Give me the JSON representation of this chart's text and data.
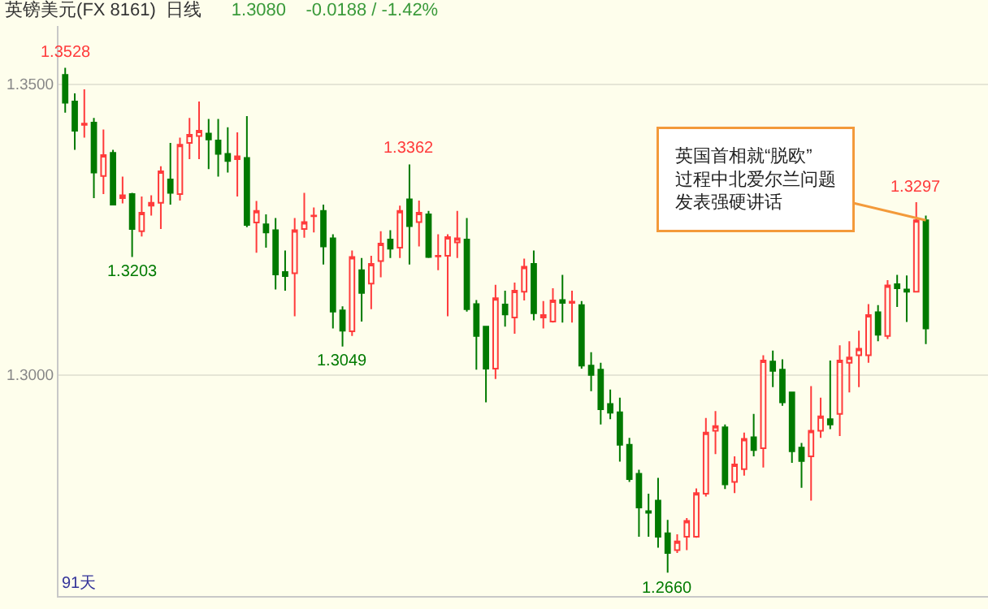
{
  "chart_data": {
    "type": "candlestick",
    "title": "英镑美元(FX 8161)  日线",
    "subtitle": "1.3080    -0.0188 / -1.42%",
    "categories": [
      null,
      null,
      null,
      null,
      null,
      null,
      null,
      null,
      null,
      null,
      null,
      null,
      null,
      null,
      null,
      null,
      null,
      null,
      null,
      null,
      null,
      null,
      null,
      null,
      null,
      null,
      null,
      null,
      null,
      null,
      null,
      null,
      null,
      null,
      null,
      null,
      null,
      null,
      null,
      null,
      null,
      null,
      null,
      null,
      null,
      null,
      null,
      null,
      null,
      null,
      null,
      null,
      null,
      null,
      null,
      null,
      null,
      null,
      null,
      null,
      null,
      null,
      null,
      null,
      null,
      null,
      null,
      null,
      null,
      null,
      null,
      null,
      null,
      null,
      null,
      null,
      null,
      null,
      null,
      null,
      null,
      null,
      null,
      null,
      null,
      null,
      null,
      null,
      null,
      null,
      null
    ],
    "ohlc": [
      [
        1.3516,
        1.3528,
        1.3451,
        1.3468
      ],
      [
        1.347,
        1.3484,
        1.3387,
        1.342
      ],
      [
        1.343,
        1.3491,
        1.3408,
        1.3432
      ],
      [
        1.3434,
        1.3442,
        1.3304,
        1.3348
      ],
      [
        1.3342,
        1.3422,
        1.3311,
        1.3378
      ],
      [
        1.3382,
        1.3387,
        1.3293,
        1.3293
      ],
      [
        1.3304,
        1.3341,
        1.3295,
        1.3309
      ],
      [
        1.3311,
        1.3313,
        1.3203,
        1.3251
      ],
      [
        1.3247,
        1.3307,
        1.3238,
        1.3279
      ],
      [
        1.3291,
        1.3309,
        1.3274,
        1.3296
      ],
      [
        1.3296,
        1.3359,
        1.3251,
        1.335
      ],
      [
        1.3336,
        1.3399,
        1.3293,
        1.3313
      ],
      [
        1.3311,
        1.3408,
        1.33,
        1.3396
      ],
      [
        1.3399,
        1.3442,
        1.3371,
        1.3413
      ],
      [
        1.3411,
        1.347,
        1.3371,
        1.342
      ],
      [
        1.3415,
        1.344,
        1.3354,
        1.3405
      ],
      [
        1.3403,
        1.344,
        1.3341,
        1.338
      ],
      [
        1.338,
        1.3426,
        1.3348,
        1.3368
      ],
      [
        1.3371,
        1.3417,
        1.3307,
        1.3376
      ],
      [
        1.3373,
        1.3445,
        1.3254,
        1.3258
      ],
      [
        1.3262,
        1.3299,
        1.321,
        1.3282
      ],
      [
        1.3259,
        1.3276,
        1.3219,
        1.3245
      ],
      [
        1.3249,
        1.327,
        1.3147,
        1.3173
      ],
      [
        1.3177,
        1.3214,
        1.3145,
        1.317
      ],
      [
        1.3175,
        1.327,
        1.3101,
        1.3249
      ],
      [
        1.3251,
        1.3313,
        1.3236,
        1.3263
      ],
      [
        1.3273,
        1.3288,
        1.3245,
        1.3274
      ],
      [
        1.3282,
        1.3293,
        1.319,
        1.3221
      ],
      [
        1.3235,
        1.3242,
        1.308,
        1.3109
      ],
      [
        1.3111,
        1.3118,
        1.3049,
        1.3076
      ],
      [
        1.3075,
        1.3214,
        1.3067,
        1.3203
      ],
      [
        1.318,
        1.3201,
        1.3092,
        1.3141
      ],
      [
        1.3157,
        1.3205,
        1.3113,
        1.3191
      ],
      [
        1.3196,
        1.3247,
        1.3168,
        1.3226
      ],
      [
        1.3233,
        1.3249,
        1.3201,
        1.3217
      ],
      [
        1.3219,
        1.3291,
        1.3201,
        1.3282
      ],
      [
        1.3302,
        1.3362,
        1.319,
        1.3256
      ],
      [
        1.3263,
        1.33,
        1.3221,
        1.3279
      ],
      [
        1.3276,
        1.3282,
        1.3201,
        1.3203
      ],
      [
        1.3204,
        1.3242,
        1.318,
        1.3205
      ],
      [
        1.3205,
        1.3242,
        1.3101,
        1.3237
      ],
      [
        1.3228,
        1.3282,
        1.3201,
        1.3235
      ],
      [
        1.3233,
        1.327,
        1.3109,
        1.3113
      ],
      [
        1.3122,
        1.3129,
        1.3009,
        1.3067
      ],
      [
        1.3083,
        1.3083,
        1.2953,
        1.3011
      ],
      [
        1.3011,
        1.3155,
        1.2993,
        1.3132
      ],
      [
        1.3121,
        1.3145,
        1.3083,
        1.3104
      ],
      [
        1.3099,
        1.3159,
        1.3071,
        1.3145
      ],
      [
        1.3143,
        1.32,
        1.3128,
        1.3186
      ],
      [
        1.3191,
        1.3214,
        1.3094,
        1.3106
      ],
      [
        1.3099,
        1.3127,
        1.308,
        1.3103
      ],
      [
        1.3092,
        1.3149,
        1.309,
        1.3128
      ],
      [
        1.3129,
        1.3172,
        1.309,
        1.3124
      ],
      [
        1.3124,
        1.3145,
        1.309,
        1.3126
      ],
      [
        1.312,
        1.3127,
        1.3011,
        1.3016
      ],
      [
        1.3016,
        1.3039,
        1.2972,
        1.3
      ],
      [
        1.3009,
        1.3021,
        1.2915,
        1.2941
      ],
      [
        1.295,
        1.2975,
        1.2924,
        1.2935
      ],
      [
        1.2936,
        1.2961,
        1.2851,
        1.288
      ],
      [
        1.288,
        1.2892,
        1.2816,
        1.2821
      ],
      [
        1.283,
        1.2837,
        1.2722,
        1.2772
      ],
      [
        1.2766,
        1.2796,
        1.2722,
        1.2763
      ],
      [
        1.2784,
        1.2823,
        1.2703,
        1.2722
      ],
      [
        1.2728,
        1.2751,
        1.266,
        1.2694
      ],
      [
        1.2699,
        1.2726,
        1.2694,
        1.2714
      ],
      [
        1.2722,
        1.2754,
        1.2699,
        1.2749
      ],
      [
        1.2722,
        1.2805,
        1.272,
        1.2797
      ],
      [
        1.2796,
        1.2926,
        1.2791,
        1.2901
      ],
      [
        1.2904,
        1.2938,
        1.2864,
        1.2912
      ],
      [
        1.291,
        1.2915,
        1.2804,
        1.2812
      ],
      [
        1.2816,
        1.286,
        1.2797,
        1.2846
      ],
      [
        1.2838,
        1.2901,
        1.2827,
        1.289
      ],
      [
        1.2893,
        1.2933,
        1.286,
        1.2871
      ],
      [
        1.2874,
        1.3034,
        1.2841,
        1.3025
      ],
      [
        1.3023,
        1.3042,
        1.2979,
        1.3007
      ],
      [
        1.3009,
        1.3027,
        1.2947,
        1.2953
      ],
      [
        1.297,
        1.297,
        1.2849,
        1.2869
      ],
      [
        1.2875,
        1.2883,
        1.2806,
        1.2852
      ],
      [
        1.286,
        1.2981,
        1.2784,
        1.2904
      ],
      [
        1.2904,
        1.2961,
        1.2892,
        1.2929
      ],
      [
        1.2924,
        1.3025,
        1.2907,
        1.2915
      ],
      [
        1.2933,
        1.3051,
        1.2895,
        1.3025
      ],
      [
        1.3021,
        1.3058,
        1.297,
        1.303
      ],
      [
        1.3034,
        1.3076,
        1.2979,
        1.3045
      ],
      [
        1.3034,
        1.3122,
        1.3021,
        1.3103
      ],
      [
        1.3108,
        1.312,
        1.3058,
        1.3069
      ],
      [
        1.3067,
        1.3163,
        1.3062,
        1.3154
      ],
      [
        1.3156,
        1.3172,
        1.3117,
        1.3149
      ],
      [
        1.3147,
        1.3171,
        1.3091,
        1.3143
      ],
      [
        1.3143,
        1.3297,
        1.3142,
        1.3266
      ],
      [
        1.3266,
        1.3274,
        1.3053,
        1.308
      ]
    ],
    "colors": [
      "#007a00",
      "#007a00",
      "#ff3b3b",
      "#007a00",
      "#ff3b3b",
      "#007a00",
      "#ff3b3b",
      "#007a00",
      "#ff3b3b",
      "#ff3b3b",
      "#ff3b3b",
      "#007a00",
      "#ff3b3b",
      "#ff3b3b",
      "#ff3b3b",
      "#007a00",
      "#007a00",
      "#007a00",
      "#ff3b3b",
      "#007a00",
      "#ff3b3b",
      "#007a00",
      "#007a00",
      "#007a00",
      "#ff3b3b",
      "#ff3b3b",
      "#ff3b3b",
      "#007a00",
      "#007a00",
      "#007a00",
      "#ff3b3b",
      "#007a00",
      "#ff3b3b",
      "#ff3b3b",
      "#007a00",
      "#ff3b3b",
      "#007a00",
      "#ff3b3b",
      "#007a00",
      "#ff3b3b",
      "#ff3b3b",
      "#ff3b3b",
      "#007a00",
      "#007a00",
      "#007a00",
      "#ff3b3b",
      "#007a00",
      "#ff3b3b",
      "#ff3b3b",
      "#007a00",
      "#ff3b3b",
      "#ff3b3b",
      "#007a00",
      "#ff3b3b",
      "#007a00",
      "#007a00",
      "#007a00",
      "#007a00",
      "#007a00",
      "#007a00",
      "#007a00",
      "#007a00",
      "#007a00",
      "#007a00",
      "#ff3b3b",
      "#ff3b3b",
      "#ff3b3b",
      "#ff3b3b",
      "#ff3b3b",
      "#007a00",
      "#ff3b3b",
      "#ff3b3b",
      "#007a00",
      "#ff3b3b",
      "#007a00",
      "#007a00",
      "#007a00",
      "#007a00",
      "#ff3b3b",
      "#ff3b3b",
      "#007a00",
      "#ff3b3b",
      "#ff3b3b",
      "#ff3b3b",
      "#ff3b3b",
      "#007a00",
      "#ff3b3b",
      "#007a00",
      "#007a00",
      "#ff3b3b",
      "#007a00"
    ],
    "ylim": [
      1.262,
      1.36
    ],
    "yticks": [
      {
        "value": 1.35,
        "label": "1.3500"
      },
      {
        "value": 1.3,
        "label": "1.3000"
      }
    ],
    "grid": "y",
    "tick_labels": "y",
    "annotations": [
      {
        "text": "1.3528",
        "y": 1.3528
      },
      {
        "text": "1.3203",
        "y": 1.3203
      },
      {
        "text": "1.3049",
        "y": 1.3049
      },
      {
        "text": "1.3362",
        "y": 1.3362
      },
      {
        "text": "1.2660",
        "y": 1.266
      },
      {
        "text": "1.3297",
        "y": 1.3297
      },
      "英国首相就“脱欧”过程中北爱尔兰问题发表强硬讲话",
      "91天"
    ]
  }
}
